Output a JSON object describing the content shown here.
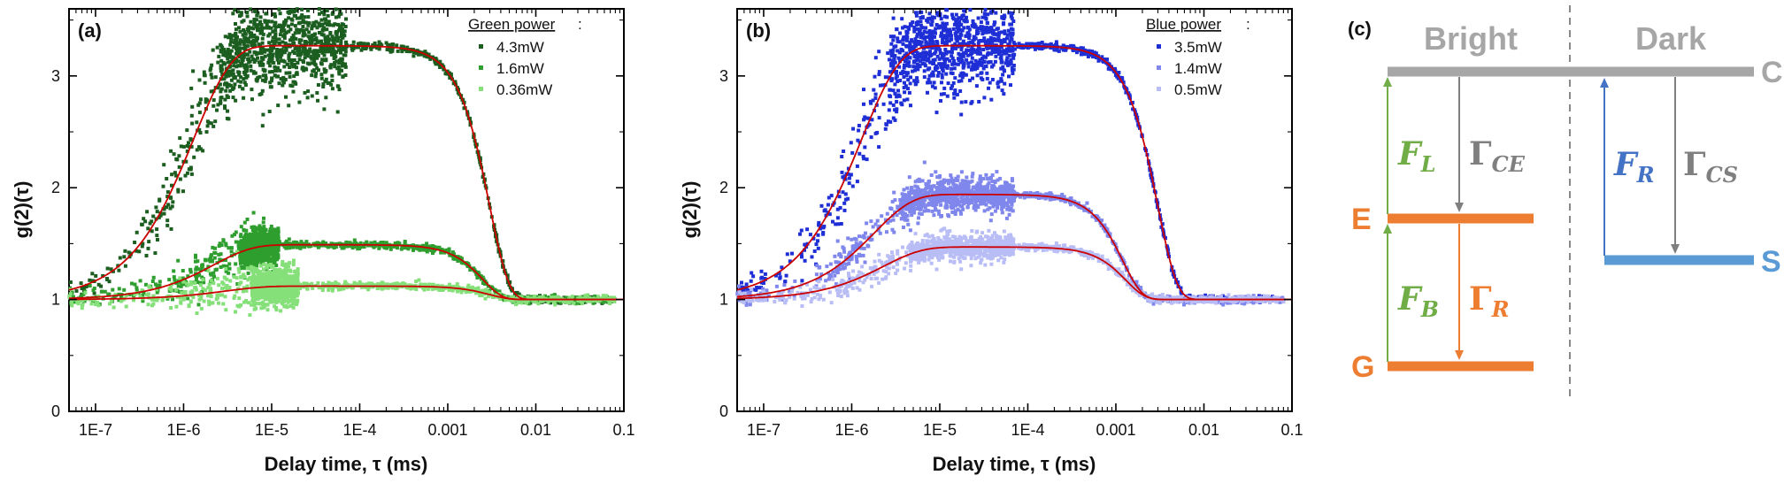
{
  "chart_data": [
    {
      "type": "scatter",
      "panel_label": "(a)",
      "xlabel": "Delay time,  τ (ms)",
      "ylabel": "g(2)(τ)",
      "x_scale": "log",
      "xlim": [
        5e-08,
        0.1
      ],
      "ylim": [
        0,
        3.6
      ],
      "x_ticks": [
        "1E-7",
        "1E-6",
        "1E-5",
        "1E-4",
        "0.001",
        "0.01",
        "0.1"
      ],
      "y_ticks": [
        "0",
        "1",
        "2",
        "3"
      ],
      "legend_title": "Green power",
      "legend_position": "top-right",
      "series": [
        {
          "name": "4.3mW",
          "color": "#1b5e20",
          "amplitude": 2.27,
          "rise_time": 1.3e-06,
          "decay_time": 0.003,
          "noise_until": 7e-05,
          "noise_amp": 0.45
        },
        {
          "name": "1.6mW",
          "color": "#2e9e2e",
          "amplitude": 0.49,
          "rise_time": 2.2e-06,
          "decay_time": 0.0025,
          "noise_until": 1.2e-05,
          "noise_amp": 0.18
        },
        {
          "name": "0.36mW",
          "color": "#86e07a",
          "amplitude": 0.12,
          "rise_time": 3e-06,
          "decay_time": 0.003,
          "noise_until": 2e-05,
          "noise_amp": 0.18
        }
      ],
      "fit_color": "#cc0000"
    },
    {
      "type": "scatter",
      "panel_label": "(b)",
      "xlabel": "Delay time,  τ (ms)",
      "ylabel": "g(2)(τ)",
      "x_scale": "log",
      "xlim": [
        5e-08,
        0.1
      ],
      "ylim": [
        0,
        3.6
      ],
      "x_ticks": [
        "1E-7",
        "1E-6",
        "1E-5",
        "1E-4",
        "0.001",
        "0.01",
        "0.1"
      ],
      "y_ticks": [
        "0",
        "1",
        "2",
        "3"
      ],
      "legend_title": "Blue power",
      "legend_position": "top-right",
      "series": [
        {
          "name": "3.5mW",
          "color": "#1f2fd6",
          "amplitude": 2.27,
          "rise_time": 1.3e-06,
          "decay_time": 0.003,
          "noise_until": 7e-05,
          "noise_amp": 0.45
        },
        {
          "name": "1.4mW",
          "color": "#7f86ec",
          "amplitude": 0.94,
          "rise_time": 1.8e-06,
          "decay_time": 0.0012,
          "noise_until": 7e-05,
          "noise_amp": 0.15
        },
        {
          "name": "0.5mW",
          "color": "#b9bdf5",
          "amplitude": 0.47,
          "rise_time": 2.3e-06,
          "decay_time": 0.0013,
          "noise_until": 7e-05,
          "noise_amp": 0.1
        }
      ],
      "fit_color": "#cc0000"
    }
  ],
  "diagram": {
    "panel_label": "(c)",
    "bright_label": "Bright",
    "dark_label": "Dark",
    "levels": {
      "C": "C",
      "E": "E",
      "G": "G",
      "S": "S"
    },
    "transitions": {
      "FL": {
        "base": "F",
        "sub": "L"
      },
      "FB": {
        "base": "F",
        "sub": "B"
      },
      "GCE": {
        "base": "Γ",
        "sub": "CE"
      },
      "GR": {
        "base": "Γ",
        "sub": "R"
      },
      "FR": {
        "base": "F",
        "sub": "R"
      },
      "GCS": {
        "base": "Γ",
        "sub": "CS"
      }
    },
    "colors": {
      "gray": "#a6a6a6",
      "orange": "#ed7d31",
      "green": "#70ad47",
      "blue": "#5b9bd5",
      "darkblue": "#4472c4"
    }
  }
}
